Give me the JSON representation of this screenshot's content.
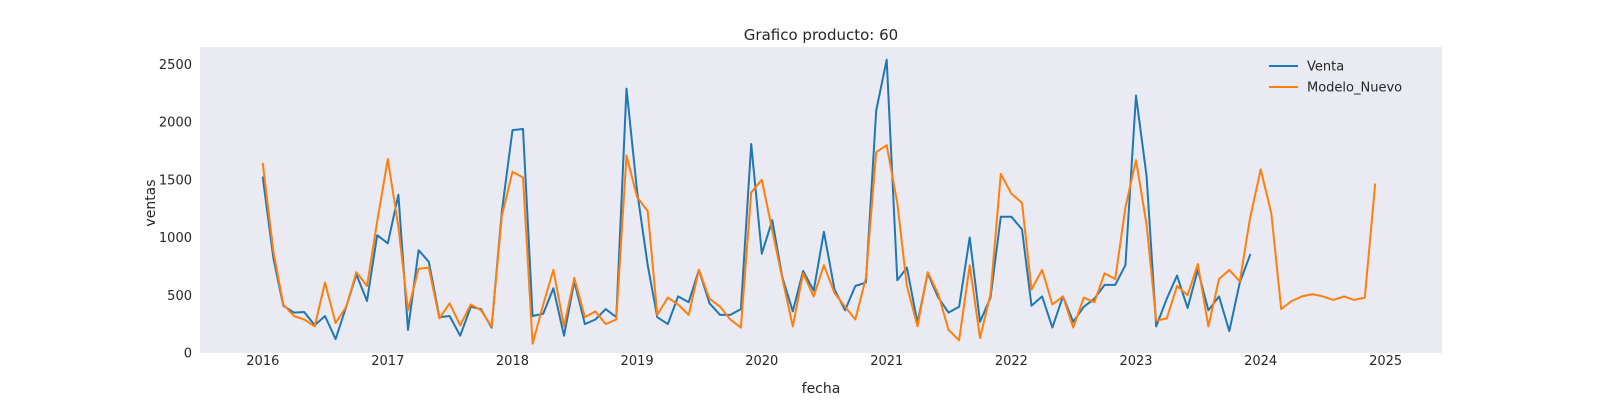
{
  "chart_data": {
    "type": "line",
    "title": "Grafico producto: 60",
    "xlabel": "fecha",
    "ylabel": "ventas",
    "xlim": [
      "2015-07-01",
      "2025-06-15"
    ],
    "ylim": [
      0,
      2650
    ],
    "x_ticks": [
      "2016",
      "2017",
      "2018",
      "2019",
      "2020",
      "2021",
      "2022",
      "2023",
      "2024",
      "2025"
    ],
    "y_ticks": [
      "0",
      "500",
      "1000",
      "1500",
      "2000",
      "2500"
    ],
    "grid": false,
    "legend_position": "top-right",
    "background": "#eaeaf2",
    "series": [
      {
        "name": "Venta",
        "color": "#1f77b4",
        "x": [
          "2016-01",
          "2016-02",
          "2016-03",
          "2016-04",
          "2016-05",
          "2016-06",
          "2016-07",
          "2016-08",
          "2016-09",
          "2016-10",
          "2016-11",
          "2016-12",
          "2017-01",
          "2017-02",
          "2017-03",
          "2017-04",
          "2017-05",
          "2017-06",
          "2017-07",
          "2017-08",
          "2017-09",
          "2017-10",
          "2017-11",
          "2017-12",
          "2018-01",
          "2018-02",
          "2018-03",
          "2018-04",
          "2018-05",
          "2018-06",
          "2018-07",
          "2018-08",
          "2018-09",
          "2018-10",
          "2018-11",
          "2018-12",
          "2019-01",
          "2019-02",
          "2019-03",
          "2019-04",
          "2019-05",
          "2019-06",
          "2019-07",
          "2019-08",
          "2019-09",
          "2019-10",
          "2019-11",
          "2019-12",
          "2020-01",
          "2020-02",
          "2020-03",
          "2020-04",
          "2020-05",
          "2020-06",
          "2020-07",
          "2020-08",
          "2020-09",
          "2020-10",
          "2020-11",
          "2020-12",
          "2021-01",
          "2021-02",
          "2021-03",
          "2021-04",
          "2021-05",
          "2021-06",
          "2021-07",
          "2021-08",
          "2021-09",
          "2021-10",
          "2021-11",
          "2021-12",
          "2022-01",
          "2022-02",
          "2022-03",
          "2022-04",
          "2022-05",
          "2022-06",
          "2022-07",
          "2022-08",
          "2022-09",
          "2022-10",
          "2022-11",
          "2022-12",
          "2023-01",
          "2023-02",
          "2023-03",
          "2023-04",
          "2023-05",
          "2023-06",
          "2023-07",
          "2023-08",
          "2023-09",
          "2023-10",
          "2023-11",
          "2023-12"
        ],
        "values": [
          1520,
          820,
          410,
          350,
          355,
          240,
          320,
          120,
          400,
          680,
          450,
          1020,
          950,
          1370,
          200,
          890,
          790,
          310,
          320,
          150,
          400,
          380,
          220,
          1230,
          1930,
          1940,
          320,
          340,
          560,
          150,
          620,
          250,
          290,
          380,
          310,
          2290,
          1400,
          760,
          310,
          250,
          490,
          440,
          720,
          430,
          330,
          330,
          380,
          1810,
          860,
          1150,
          660,
          360,
          710,
          540,
          1050,
          550,
          370,
          580,
          610,
          2100,
          2540,
          630,
          740,
          260,
          690,
          480,
          350,
          400,
          1000,
          270,
          480,
          1180,
          1180,
          1070,
          410,
          490,
          220,
          490,
          270,
          400,
          470,
          590,
          590,
          760,
          2230,
          1530,
          230,
          470,
          670,
          390,
          720,
          370,
          490,
          190,
          610,
          850
        ]
      },
      {
        "name": "Modelo_Nuevo",
        "color": "#ff7f0e",
        "x": [
          "2016-01",
          "2016-02",
          "2016-03",
          "2016-04",
          "2016-05",
          "2016-06",
          "2016-07",
          "2016-08",
          "2016-09",
          "2016-10",
          "2016-11",
          "2016-12",
          "2017-01",
          "2017-02",
          "2017-03",
          "2017-04",
          "2017-05",
          "2017-06",
          "2017-07",
          "2017-08",
          "2017-09",
          "2017-10",
          "2017-11",
          "2017-12",
          "2018-01",
          "2018-02",
          "2018-03",
          "2018-04",
          "2018-05",
          "2018-06",
          "2018-07",
          "2018-08",
          "2018-09",
          "2018-10",
          "2018-11",
          "2018-12",
          "2019-01",
          "2019-02",
          "2019-03",
          "2019-04",
          "2019-05",
          "2019-06",
          "2019-07",
          "2019-08",
          "2019-09",
          "2019-10",
          "2019-11",
          "2019-12",
          "2020-01",
          "2020-02",
          "2020-03",
          "2020-04",
          "2020-05",
          "2020-06",
          "2020-07",
          "2020-08",
          "2020-09",
          "2020-10",
          "2020-11",
          "2020-12",
          "2021-01",
          "2021-02",
          "2021-03",
          "2021-04",
          "2021-05",
          "2021-06",
          "2021-07",
          "2021-08",
          "2021-09",
          "2021-10",
          "2021-11",
          "2021-12",
          "2022-01",
          "2022-02",
          "2022-03",
          "2022-04",
          "2022-05",
          "2022-06",
          "2022-07",
          "2022-08",
          "2022-09",
          "2022-10",
          "2022-11",
          "2022-12",
          "2023-01",
          "2023-02",
          "2023-03",
          "2023-04",
          "2023-05",
          "2023-06",
          "2023-07",
          "2023-08",
          "2023-09",
          "2023-10",
          "2023-11",
          "2023-12",
          "2024-01",
          "2024-02",
          "2024-03",
          "2024-04",
          "2024-05",
          "2024-06",
          "2024-07",
          "2024-08",
          "2024-09",
          "2024-10",
          "2024-11",
          "2024-12"
        ],
        "values": [
          1640,
          880,
          420,
          320,
          290,
          230,
          610,
          260,
          400,
          700,
          580,
          1140,
          1680,
          1090,
          370,
          730,
          740,
          300,
          430,
          240,
          420,
          370,
          230,
          1190,
          1570,
          1520,
          80,
          420,
          720,
          230,
          650,
          310,
          360,
          250,
          290,
          1710,
          1350,
          1230,
          330,
          480,
          420,
          330,
          720,
          470,
          400,
          290,
          220,
          1390,
          1500,
          1060,
          650,
          230,
          690,
          490,
          760,
          520,
          400,
          290,
          650,
          1740,
          1800,
          1300,
          580,
          230,
          700,
          510,
          200,
          110,
          760,
          130,
          510,
          1550,
          1380,
          1300,
          550,
          720,
          420,
          490,
          220,
          480,
          440,
          690,
          640,
          1260,
          1670,
          1110,
          280,
          300,
          580,
          500,
          770,
          230,
          640,
          720,
          620,
          1170,
          1590,
          1210,
          380,
          450,
          490,
          510,
          490,
          460,
          490,
          460,
          480,
          1460
        ]
      }
    ]
  }
}
